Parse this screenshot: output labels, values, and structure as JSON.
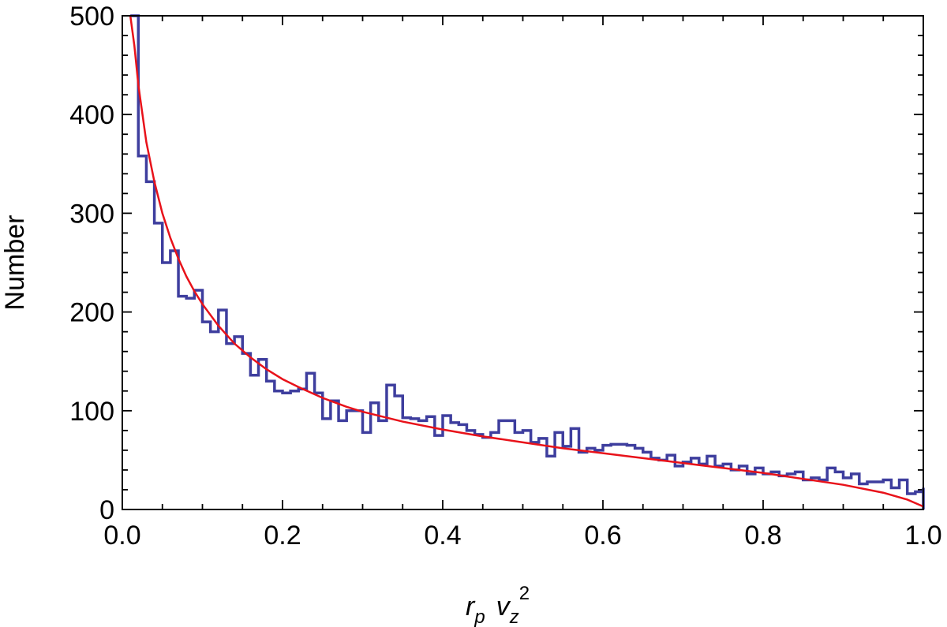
{
  "chart_data": {
    "type": "histogram",
    "title": "",
    "xlabel": {
      "base1": "r",
      "sub1": "p",
      "base2": "v",
      "sub2": "z",
      "sup2": "2"
    },
    "ylabel": "Number",
    "xlim": [
      0.0,
      1.0
    ],
    "ylim": [
      0,
      500
    ],
    "xticks": [
      0.0,
      0.2,
      0.4,
      0.6,
      0.8,
      1.0
    ],
    "xtick_labels": [
      "0.0",
      "0.2",
      "0.4",
      "0.6",
      "0.8",
      "1.0"
    ],
    "yticks": [
      0,
      100,
      200,
      300,
      400,
      500
    ],
    "ytick_labels": [
      "0",
      "100",
      "200",
      "300",
      "400",
      "500"
    ],
    "grid": false,
    "bin_width": 0.01,
    "bin_start": 0.01,
    "histogram_values": [
      505,
      358,
      332,
      290,
      250,
      262,
      216,
      214,
      222,
      190,
      180,
      202,
      168,
      175,
      158,
      136,
      152,
      130,
      120,
      118,
      120,
      122,
      138,
      118,
      92,
      110,
      90,
      100,
      100,
      78,
      108,
      90,
      126,
      115,
      93,
      92,
      90,
      94,
      75,
      95,
      88,
      86,
      80,
      76,
      73,
      78,
      90,
      90,
      78,
      80,
      68,
      72,
      54,
      78,
      64,
      82,
      58,
      62,
      60,
      65,
      66,
      66,
      65,
      62,
      58,
      52,
      50,
      55,
      44,
      48,
      52,
      46,
      54,
      44,
      46,
      40,
      44,
      36,
      42,
      36,
      38,
      34,
      36,
      38,
      30,
      32,
      30,
      42,
      38,
      32,
      36,
      26,
      28,
      28,
      30,
      22,
      30,
      16,
      18,
      22
    ],
    "fit_curve": {
      "name": "",
      "points": [
        [
          0.01,
          500
        ],
        [
          0.015,
          470
        ],
        [
          0.02,
          430
        ],
        [
          0.03,
          372
        ],
        [
          0.04,
          332
        ],
        [
          0.05,
          300
        ],
        [
          0.06,
          275
        ],
        [
          0.07,
          254
        ],
        [
          0.08,
          236
        ],
        [
          0.09,
          221
        ],
        [
          0.1,
          208
        ],
        [
          0.12,
          186
        ],
        [
          0.14,
          168
        ],
        [
          0.16,
          154
        ],
        [
          0.18,
          142
        ],
        [
          0.2,
          132
        ],
        [
          0.22,
          124
        ],
        [
          0.25,
          113
        ],
        [
          0.28,
          104
        ],
        [
          0.3,
          99
        ],
        [
          0.35,
          89
        ],
        [
          0.4,
          81
        ],
        [
          0.45,
          74
        ],
        [
          0.5,
          68
        ],
        [
          0.55,
          62
        ],
        [
          0.6,
          57
        ],
        [
          0.65,
          52
        ],
        [
          0.7,
          47
        ],
        [
          0.75,
          42
        ],
        [
          0.8,
          37
        ],
        [
          0.85,
          31
        ],
        [
          0.9,
          25
        ],
        [
          0.95,
          17
        ],
        [
          0.98,
          10
        ],
        [
          1.0,
          3
        ]
      ]
    },
    "colors": {
      "histogram": "#3e3e9e",
      "fit": "#e8121a",
      "axes": "#000000"
    }
  }
}
